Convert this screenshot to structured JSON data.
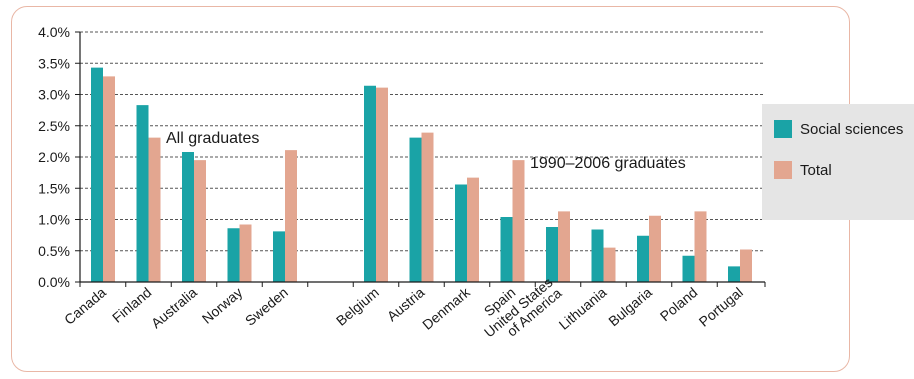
{
  "chart_data": {
    "type": "bar",
    "title": "",
    "xlabel": "",
    "ylabel": "",
    "ylim": [
      0,
      4.0
    ],
    "yticks": [
      "0.0%",
      "0.5%",
      "1.0%",
      "1.5%",
      "2.0%",
      "2.5%",
      "3.0%",
      "3.5%",
      "4.0%"
    ],
    "grid": true,
    "legend_position": "right",
    "groups": [
      {
        "label": "All graduates",
        "categories": [
          "Canada",
          "Finland",
          "Australia",
          "Norway",
          "Sweden"
        ]
      },
      {
        "label": "1990–2006 graduates",
        "categories": [
          "Belgium",
          "Austria",
          "Denmark",
          "Spain",
          "United States of America",
          "Lithuania",
          "Bulgaria",
          "Poland",
          "Portugal"
        ]
      }
    ],
    "categories": [
      "Canada",
      "Finland",
      "Australia",
      "Norway",
      "Sweden",
      "Belgium",
      "Austria",
      "Denmark",
      "Spain",
      "United States of America",
      "Lithuania",
      "Bulgaria",
      "Poland",
      "Portugal"
    ],
    "category_label_lines": [
      [
        "Canada"
      ],
      [
        "Finland"
      ],
      [
        "Australia"
      ],
      [
        "Norway"
      ],
      [
        "Sweden"
      ],
      [
        "Belgium"
      ],
      [
        "Austria"
      ],
      [
        "Denmark"
      ],
      [
        "Spain"
      ],
      [
        "United States",
        "of America"
      ],
      [
        "Lithuania"
      ],
      [
        "Bulgaria"
      ],
      [
        "Poland"
      ],
      [
        "Portugal"
      ]
    ],
    "series": [
      {
        "name": "Social sciences",
        "color": "#1aa3a6",
        "values": [
          3.43,
          2.83,
          2.08,
          0.86,
          0.81,
          3.14,
          2.31,
          1.56,
          1.04,
          0.88,
          0.84,
          0.74,
          0.42,
          0.25
        ]
      },
      {
        "name": "Total",
        "color": "#e3a690",
        "values": [
          3.29,
          2.31,
          1.95,
          0.92,
          2.11,
          3.11,
          2.39,
          1.67,
          1.95,
          1.13,
          0.55,
          1.06,
          1.13,
          0.52
        ]
      }
    ]
  }
}
